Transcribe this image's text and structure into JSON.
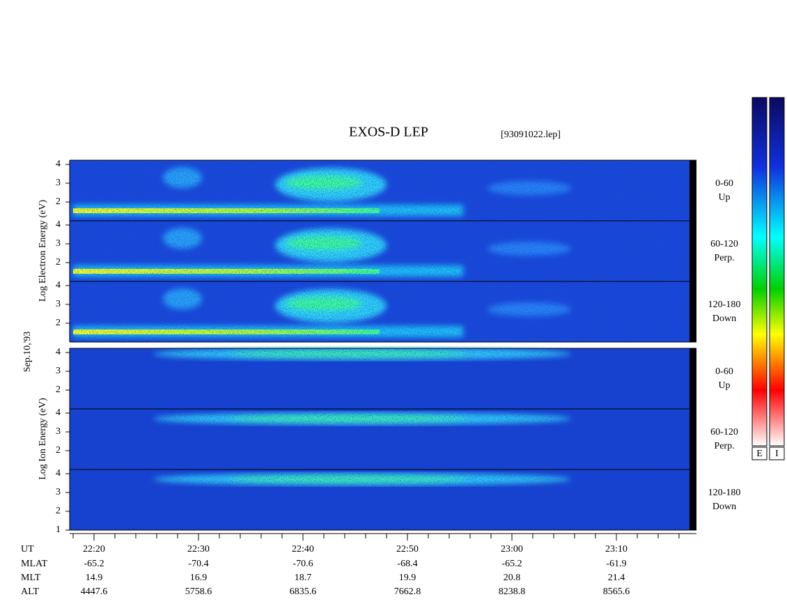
{
  "title": "EXOS-D LEP",
  "file": "[93091022.lep]",
  "date": "Sep.10,'93",
  "electron_axis_label": "Log Electron Energy (eV)",
  "ion_axis_label": "Log Ion Energy (eV)",
  "panels": [
    {
      "angle": "0-60",
      "direction": "Up",
      "yticks": [
        2,
        3,
        4
      ]
    },
    {
      "angle": "60-120",
      "direction": "Perp.",
      "yticks": [
        2,
        3,
        4
      ]
    },
    {
      "angle": "120-180",
      "direction": "Down",
      "yticks": [
        2,
        3,
        4
      ]
    },
    {
      "angle": "0-60",
      "direction": "Up",
      "yticks": [
        2,
        3,
        4
      ]
    },
    {
      "angle": "60-120",
      "direction": "Perp.",
      "yticks": [
        2,
        3,
        4
      ]
    },
    {
      "angle": "120-180",
      "direction": "Down",
      "yticks": [
        1,
        2,
        3,
        4
      ]
    }
  ],
  "ut_label": "UT",
  "xticks": [
    "22:20",
    "22:30",
    "22:40",
    "22:50",
    "23:00",
    "23:10"
  ],
  "rows": [
    {
      "label": "MLAT",
      "values": [
        -65.2,
        -70.4,
        -70.6,
        -68.4,
        -65.2,
        -61.9
      ]
    },
    {
      "label": "MLT",
      "values": [
        14.9,
        16.9,
        18.7,
        19.9,
        20.8,
        21.4
      ]
    },
    {
      "label": "ALT",
      "values": [
        4447.6,
        5758.6,
        6835.6,
        7662.8,
        8238.8,
        8565.6
      ]
    }
  ],
  "colorbars": [
    "E",
    "I"
  ]
}
